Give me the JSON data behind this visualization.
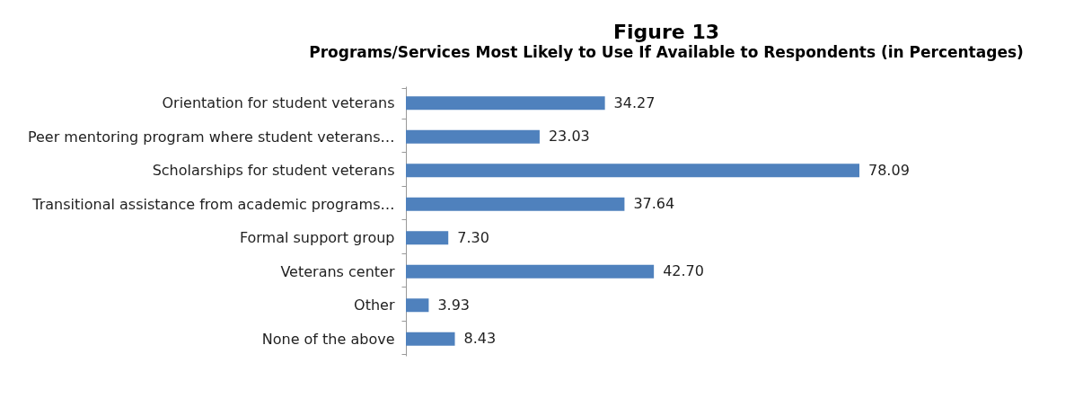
{
  "chart_data": {
    "type": "bar",
    "orientation": "horizontal",
    "title": "Figure 13",
    "subtitle": "Programs/Services Most Likely to Use If Available to Respondents (in Percentages)",
    "categories": [
      "Orientation for student veterans",
      "Peer mentoring program where student veterans…",
      "Scholarships for student veterans",
      "Transitional assistance from academic programs…",
      "Formal support group",
      "Veterans center",
      "Other",
      "None of the above"
    ],
    "values": [
      34.27,
      23.03,
      78.09,
      37.64,
      7.3,
      42.7,
      3.93,
      8.43
    ],
    "value_labels": [
      "34.27",
      "23.03",
      "78.09",
      "37.64",
      "7.30",
      "42.70",
      "3.93",
      "8.43"
    ],
    "color": "#4f81bd",
    "grid": false
  }
}
